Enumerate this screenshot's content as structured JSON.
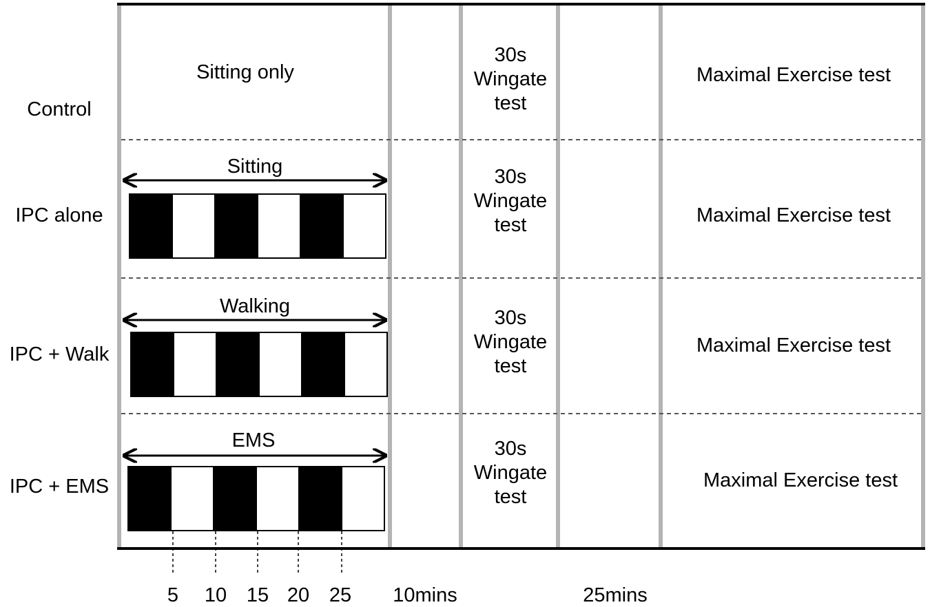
{
  "colors": {
    "border": "#000000",
    "column_divider": "#b4b4b4",
    "row_divider": "#555555",
    "block_fill": "#000000",
    "block_empty": "#ffffff"
  },
  "rows": [
    {
      "label": "Control",
      "phase_label": "Sitting only",
      "has_blocks": false,
      "wingate": [
        "30s",
        "Wingate",
        "test"
      ],
      "exercise": "Maximal Exercise test"
    },
    {
      "label": "IPC alone",
      "phase_label": "Sitting",
      "has_blocks": true,
      "wingate": [
        "30s",
        "Wingate",
        "test"
      ],
      "exercise": "Maximal Exercise test"
    },
    {
      "label": "IPC + Walk",
      "phase_label": "Walking",
      "has_blocks": true,
      "wingate": [
        "30s",
        "Wingate",
        "test"
      ],
      "exercise": "Maximal Exercise test"
    },
    {
      "label": "IPC + EMS",
      "phase_label": "EMS",
      "has_blocks": true,
      "wingate": [
        "30s",
        "Wingate",
        "test"
      ],
      "exercise": "Maximal Exercise test"
    }
  ],
  "block_pattern": [
    "filled",
    "empty",
    "filled",
    "empty",
    "filled",
    "empty"
  ],
  "time_ticks": [
    "5",
    "10",
    "15",
    "20",
    "25"
  ],
  "intervals": [
    "10mins",
    "25mins"
  ]
}
